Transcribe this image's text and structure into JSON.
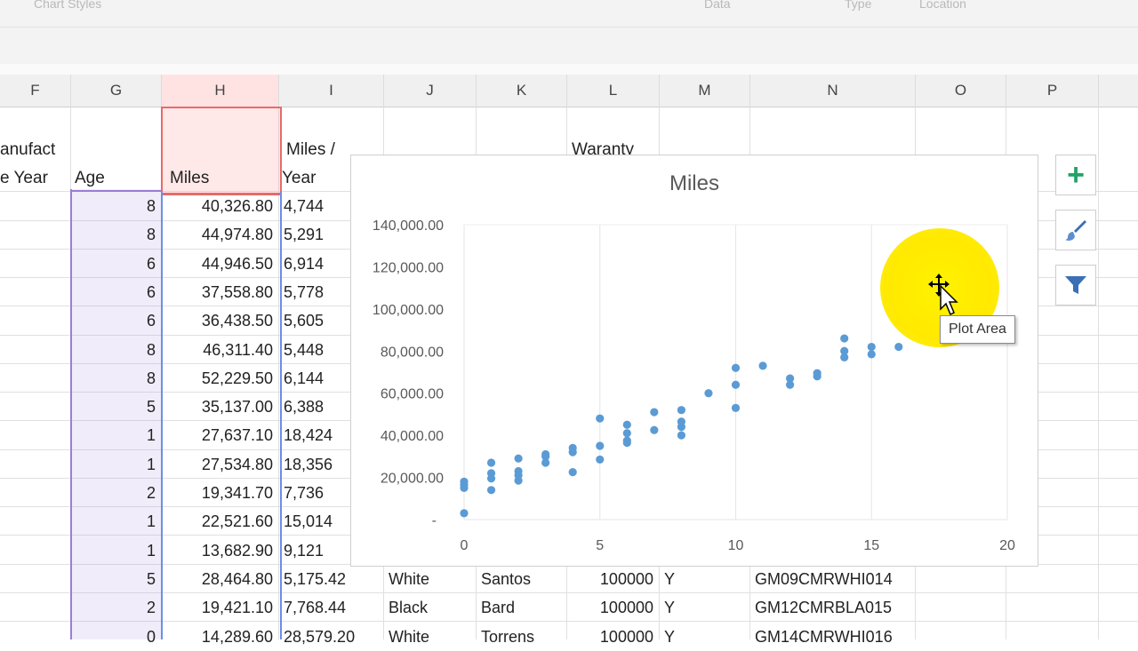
{
  "ribbon": {
    "left_group_label": "Chart Styles",
    "data_group_label": "Data",
    "type_group_label": "Type",
    "location_group_label": "Location"
  },
  "columns": [
    {
      "letter": "F"
    },
    {
      "letter": "G"
    },
    {
      "letter": "H"
    },
    {
      "letter": "I"
    },
    {
      "letter": "J"
    },
    {
      "letter": "K"
    },
    {
      "letter": "L"
    },
    {
      "letter": "M"
    },
    {
      "letter": "N"
    },
    {
      "letter": "O"
    },
    {
      "letter": "P"
    }
  ],
  "headers": {
    "f_line1": "anufact",
    "f_line2": "e Year",
    "age": "Age",
    "miles": "Miles",
    "mpy_line1": "Miles /",
    "mpy_line2": "Year",
    "warranty": "Waranty"
  },
  "rows": [
    {
      "age": "8",
      "miles": "40,326.80",
      "mpy": "4,744"
    },
    {
      "age": "8",
      "miles": "44,974.80",
      "mpy": "5,291"
    },
    {
      "age": "6",
      "miles": "44,946.50",
      "mpy": "6,914"
    },
    {
      "age": "6",
      "miles": "37,558.80",
      "mpy": "5,778"
    },
    {
      "age": "6",
      "miles": "36,438.50",
      "mpy": "5,605"
    },
    {
      "age": "8",
      "miles": "46,311.40",
      "mpy": "5,448"
    },
    {
      "age": "8",
      "miles": "52,229.50",
      "mpy": "6,144"
    },
    {
      "age": "5",
      "miles": "35,137.00",
      "mpy": "6,388"
    },
    {
      "age": "1",
      "miles": "27,637.10",
      "mpy": "18,424"
    },
    {
      "age": "1",
      "miles": "27,534.80",
      "mpy": "18,356"
    },
    {
      "age": "2",
      "miles": "19,341.70",
      "mpy": "7,736"
    },
    {
      "age": "1",
      "miles": "22,521.60",
      "mpy": "15,014"
    },
    {
      "age": "1",
      "miles": "13,682.90",
      "mpy": "9,121"
    },
    {
      "age": "5",
      "miles": "28,464.80",
      "mpy": "5,175.42",
      "color": "White",
      "name": "Santos",
      "warranty": "100000",
      "flag": "Y",
      "id": "GM09CMRWHI014"
    },
    {
      "age": "2",
      "miles": "19,421.10",
      "mpy": "7,768.44",
      "color": "Black",
      "name": "Bard",
      "warranty": "100000",
      "flag": "Y",
      "id": "GM12CMRBLA015"
    },
    {
      "age": "0",
      "miles": "14,289.60",
      "mpy": "28,579.20",
      "color": "White",
      "name": "Torrens",
      "warranty": "100000",
      "flag": "Y",
      "id": "GM14CMRWHI016"
    }
  ],
  "chart_buttons": {
    "add_elements": "+",
    "styles_icon": "paintbrush-icon",
    "filter_icon": "funnel-icon"
  },
  "tooltip": "Plot Area",
  "accent_colors": {
    "series": "#5b9bd5",
    "highlight": "#70ad47",
    "cursor_halo": "#fff200",
    "miles_selection": "#e86a6a",
    "age_selection": "#9a7fd6",
    "plus_green": "#21a366"
  },
  "chart_data": {
    "type": "scatter",
    "title": "Miles",
    "xlim": [
      0,
      20
    ],
    "ylim": [
      0,
      140000
    ],
    "x_ticks": [
      "0",
      "5",
      "10",
      "15",
      "20"
    ],
    "y_ticks": [
      "-",
      "20,000.00",
      "40,000.00",
      "60,000.00",
      "80,000.00",
      "100,000.00",
      "120,000.00",
      "140,000.00"
    ],
    "grid": "vertical",
    "legend": "none",
    "series": [
      {
        "points": [
          [
            0,
            3000
          ],
          [
            0,
            15000
          ],
          [
            0,
            16500
          ],
          [
            0,
            18000
          ],
          [
            1,
            14000
          ],
          [
            1,
            19500
          ],
          [
            1,
            22000
          ],
          [
            1,
            27000
          ],
          [
            2,
            18500
          ],
          [
            2,
            21000
          ],
          [
            2,
            23000
          ],
          [
            2,
            29000
          ],
          [
            3,
            27000
          ],
          [
            3,
            30000
          ],
          [
            3,
            31000
          ],
          [
            4,
            22500
          ],
          [
            4,
            32000
          ],
          [
            4,
            34000
          ],
          [
            5,
            28500
          ],
          [
            5,
            35000
          ],
          [
            5,
            48000
          ],
          [
            6,
            36500
          ],
          [
            6,
            37500
          ],
          [
            6,
            41000
          ],
          [
            6,
            45000
          ],
          [
            7,
            42500
          ],
          [
            7,
            51000
          ],
          [
            8,
            40000
          ],
          [
            8,
            44000
          ],
          [
            8,
            46500
          ],
          [
            8,
            52000
          ],
          [
            9,
            60000
          ],
          [
            10,
            53000
          ],
          [
            10,
            64000
          ],
          [
            10,
            72000
          ],
          [
            11,
            73000
          ],
          [
            12,
            64000
          ],
          [
            12,
            67000
          ],
          [
            13,
            68000
          ],
          [
            13,
            69500
          ],
          [
            14,
            77000
          ],
          [
            14,
            80000
          ],
          [
            14,
            86000
          ],
          [
            15,
            78500
          ],
          [
            15,
            82000
          ],
          [
            16,
            82000
          ],
          [
            16,
            94000
          ],
          [
            18,
            113000
          ],
          [
            18,
            115500
          ]
        ]
      }
    ]
  }
}
